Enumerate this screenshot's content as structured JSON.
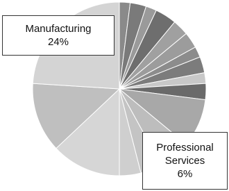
{
  "chart_data": {
    "type": "pie",
    "categories": [
      null,
      null,
      null,
      null,
      null,
      null,
      null,
      null,
      null,
      null,
      null,
      "Professional Services",
      null,
      null,
      null,
      null,
      "Manufacturing"
    ],
    "values": [
      2,
      3,
      2,
      4,
      3,
      3,
      2,
      3,
      2,
      3,
      9,
      6,
      4,
      4,
      13,
      13,
      24
    ],
    "value_labels": [
      null,
      null,
      null,
      null,
      null,
      null,
      null,
      null,
      null,
      null,
      null,
      "6%",
      null,
      null,
      null,
      null,
      "24%"
    ],
    "colors": [
      "#8a8a8a",
      "#7a7a7a",
      "#9a9a9a",
      "#6e6e6e",
      "#a0a0a0",
      "#9c9c9c",
      "#8c8c8c",
      "#7c7c7c",
      "#c8c8c8",
      "#6a6a6a",
      "#a8a8a8",
      "#bdbdbd",
      "#c4c4c4",
      "#cfcfcf",
      "#d6d6d6",
      "#bfbfbf",
      "#d4d4d4"
    ]
  }
}
